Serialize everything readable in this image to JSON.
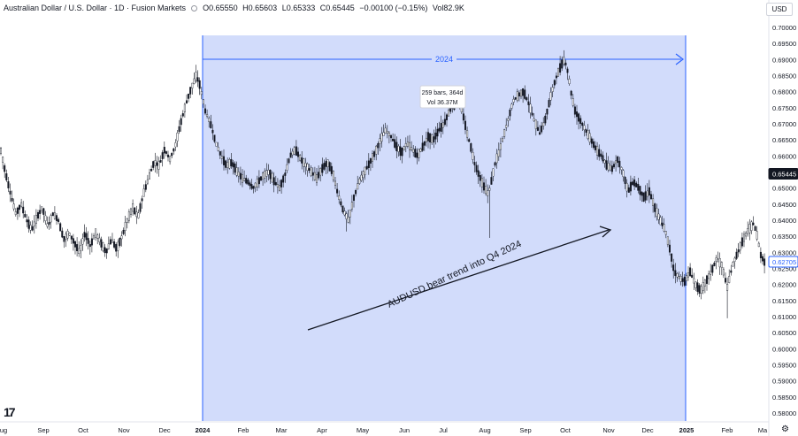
{
  "header": {
    "symbol_title": "Australian Dollar / U.S. Dollar · 1D · Fusion Markets",
    "open": "O0.65550",
    "high": "H0.65603",
    "low": "L0.65333",
    "close": "C0.65445",
    "change": "−0.00100 (−0.15%)",
    "volume": "Vol82.9K",
    "currency": "USD"
  },
  "colors": {
    "highlight_fill": "#d2dcfb",
    "highlight_border": "#2962ff",
    "candle": "#131722",
    "price_label_bg": "#131722",
    "price_label_text": "#ffffff",
    "marker_border": "#2962ff"
  },
  "chart_data": {
    "type": "candlestick",
    "x_axis": {
      "tick_labels": [
        "ug",
        "Sep",
        "Oct",
        "Nov",
        "Dec",
        "2024",
        "Feb",
        "Mar",
        "Apr",
        "May",
        "Jun",
        "Jul",
        "Aug",
        "Sep",
        "Oct",
        "Nov",
        "Dec",
        "2025",
        "Feb",
        "Ma"
      ]
    },
    "y_axis": {
      "range": [
        0.5775,
        0.7025
      ],
      "tick_labels": [
        "0.70000",
        "0.69500",
        "0.69000",
        "0.68500",
        "0.68000",
        "0.67500",
        "0.67000",
        "0.66500",
        "0.66000",
        "0.65500",
        "0.65000",
        "0.64500",
        "0.64000",
        "0.63500",
        "0.63000",
        "0.62500",
        "0.62000",
        "0.61500",
        "0.61000",
        "0.60500",
        "0.60000",
        "0.59500",
        "0.59000",
        "0.58500",
        "0.58000"
      ],
      "position": "right"
    },
    "price_labels": [
      {
        "value": 0.65445,
        "text": "0.65445",
        "style": "filled"
      },
      {
        "value": 0.62705,
        "text": "0.62705",
        "style": "outlined"
      }
    ],
    "range_highlight": {
      "start_label": "2024",
      "end_label": "2025",
      "label": "2024",
      "tooltip_line1": "259 bars, 364d",
      "tooltip_line2": "Vol 36.37M"
    },
    "annotation": {
      "text": "AUDUSD bear trend into Q4 2024",
      "arrow": "up-right"
    },
    "price_path": [
      [
        0,
        0.663
      ],
      [
        6,
        0.655
      ],
      [
        12,
        0.648
      ],
      [
        18,
        0.642
      ],
      [
        24,
        0.645
      ],
      [
        30,
        0.64
      ],
      [
        36,
        0.637
      ],
      [
        42,
        0.641
      ],
      [
        48,
        0.644
      ],
      [
        54,
        0.638
      ],
      [
        60,
        0.642
      ],
      [
        66,
        0.64
      ],
      [
        72,
        0.634
      ],
      [
        78,
        0.636
      ],
      [
        84,
        0.633
      ],
      [
        90,
        0.63
      ],
      [
        96,
        0.636
      ],
      [
        102,
        0.632
      ],
      [
        108,
        0.636
      ],
      [
        114,
        0.633
      ],
      [
        120,
        0.63
      ],
      [
        126,
        0.634
      ],
      [
        132,
        0.631
      ],
      [
        138,
        0.635
      ],
      [
        144,
        0.64
      ],
      [
        150,
        0.644
      ],
      [
        156,
        0.641
      ],
      [
        162,
        0.648
      ],
      [
        168,
        0.653
      ],
      [
        174,
        0.658
      ],
      [
        180,
        0.657
      ],
      [
        186,
        0.662
      ],
      [
        192,
        0.659
      ],
      [
        198,
        0.663
      ],
      [
        204,
        0.67
      ],
      [
        210,
        0.676
      ],
      [
        216,
        0.681
      ],
      [
        222,
        0.685
      ],
      [
        226,
        0.682
      ],
      [
        232,
        0.674
      ],
      [
        238,
        0.67
      ],
      [
        244,
        0.664
      ],
      [
        250,
        0.66
      ],
      [
        256,
        0.657
      ],
      [
        262,
        0.658
      ],
      [
        268,
        0.655
      ],
      [
        274,
        0.653
      ],
      [
        280,
        0.652
      ],
      [
        286,
        0.65
      ],
      [
        292,
        0.652
      ],
      [
        298,
        0.654
      ],
      [
        304,
        0.655
      ],
      [
        310,
        0.652
      ],
      [
        316,
        0.65
      ],
      [
        322,
        0.654
      ],
      [
        328,
        0.66
      ],
      [
        334,
        0.662
      ],
      [
        340,
        0.659
      ],
      [
        346,
        0.657
      ],
      [
        352,
        0.655
      ],
      [
        358,
        0.653
      ],
      [
        364,
        0.656
      ],
      [
        370,
        0.658
      ],
      [
        376,
        0.655
      ],
      [
        382,
        0.648
      ],
      [
        388,
        0.643
      ],
      [
        394,
        0.64
      ],
      [
        400,
        0.647
      ],
      [
        406,
        0.652
      ],
      [
        412,
        0.655
      ],
      [
        418,
        0.658
      ],
      [
        424,
        0.661
      ],
      [
        430,
        0.665
      ],
      [
        436,
        0.668
      ],
      [
        442,
        0.666
      ],
      [
        448,
        0.663
      ],
      [
        454,
        0.661
      ],
      [
        460,
        0.664
      ],
      [
        466,
        0.662
      ],
      [
        472,
        0.66
      ],
      [
        478,
        0.663
      ],
      [
        484,
        0.666
      ],
      [
        490,
        0.665
      ],
      [
        496,
        0.668
      ],
      [
        502,
        0.67
      ],
      [
        508,
        0.674
      ],
      [
        514,
        0.676
      ],
      [
        520,
        0.677
      ],
      [
        524,
        0.672
      ],
      [
        528,
        0.667
      ],
      [
        532,
        0.663
      ],
      [
        536,
        0.658
      ],
      [
        540,
        0.655
      ],
      [
        546,
        0.651
      ],
      [
        552,
        0.648
      ],
      [
        556,
        0.653
      ],
      [
        560,
        0.658
      ],
      [
        564,
        0.661
      ],
      [
        568,
        0.665
      ],
      [
        572,
        0.669
      ],
      [
        576,
        0.673
      ],
      [
        580,
        0.677
      ],
      [
        586,
        0.679
      ],
      [
        592,
        0.68
      ],
      [
        598,
        0.676
      ],
      [
        604,
        0.671
      ],
      [
        610,
        0.667
      ],
      [
        616,
        0.671
      ],
      [
        622,
        0.678
      ],
      [
        628,
        0.684
      ],
      [
        634,
        0.688
      ],
      [
        638,
        0.69
      ],
      [
        642,
        0.686
      ],
      [
        646,
        0.679
      ],
      [
        650,
        0.674
      ],
      [
        656,
        0.671
      ],
      [
        662,
        0.668
      ],
      [
        668,
        0.665
      ],
      [
        674,
        0.662
      ],
      [
        680,
        0.66
      ],
      [
        686,
        0.657
      ],
      [
        692,
        0.656
      ],
      [
        698,
        0.659
      ],
      [
        704,
        0.655
      ],
      [
        710,
        0.649
      ],
      [
        716,
        0.652
      ],
      [
        722,
        0.65
      ],
      [
        728,
        0.647
      ],
      [
        734,
        0.649
      ],
      [
        740,
        0.644
      ],
      [
        746,
        0.64
      ],
      [
        752,
        0.637
      ],
      [
        758,
        0.63
      ],
      [
        762,
        0.624
      ],
      [
        768,
        0.622
      ],
      [
        774,
        0.621
      ],
      [
        780,
        0.624
      ],
      [
        786,
        0.62
      ],
      [
        792,
        0.618
      ],
      [
        798,
        0.621
      ],
      [
        804,
        0.624
      ],
      [
        810,
        0.628
      ],
      [
        816,
        0.626
      ],
      [
        822,
        0.619
      ],
      [
        828,
        0.626
      ],
      [
        834,
        0.63
      ],
      [
        840,
        0.634
      ],
      [
        846,
        0.637
      ],
      [
        852,
        0.639
      ],
      [
        856,
        0.635
      ],
      [
        860,
        0.629
      ],
      [
        866,
        0.626
      ]
    ],
    "grid": false,
    "legend": "none"
  }
}
